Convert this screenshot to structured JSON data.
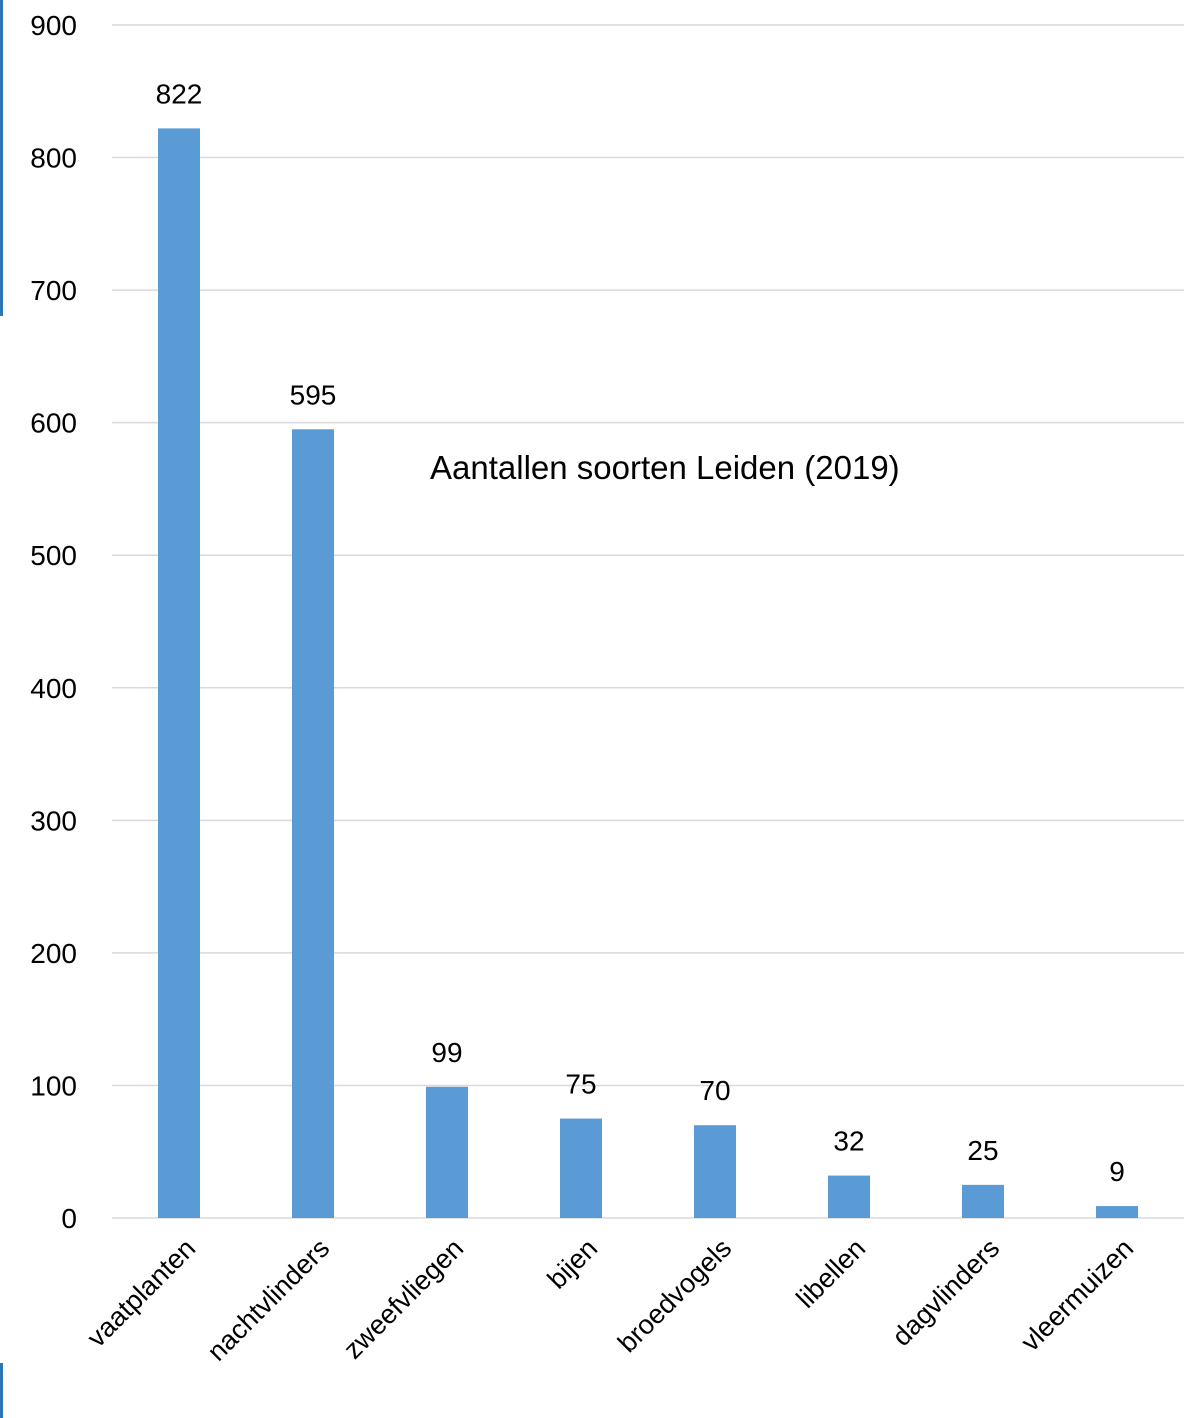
{
  "chart_data": {
    "type": "bar",
    "title": "Aantallen soorten Leiden (2019)",
    "categories": [
      "vaatplanten",
      "nachtvlinders",
      "zweefvliegen",
      "bijen",
      "broedvogels",
      "libellen",
      "dagvlinders",
      "vleermuizen"
    ],
    "values": [
      822,
      595,
      99,
      75,
      70,
      32,
      25,
      9
    ],
    "data_labels": [
      "822",
      "595",
      "99",
      "75",
      "70",
      "32",
      "25",
      "9"
    ],
    "yticks": [
      "0",
      "100",
      "200",
      "300",
      "400",
      "500",
      "600",
      "700",
      "800",
      "900"
    ],
    "ylim": [
      0,
      900
    ],
    "xlabel": "",
    "ylabel": "",
    "grid": true,
    "legend": "none",
    "bar_color": "#5b9bd5",
    "edge_accent_color": "#2e75b6"
  }
}
